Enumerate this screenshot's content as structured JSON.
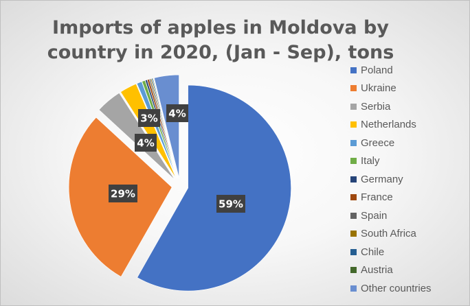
{
  "chart_data": {
    "type": "pie",
    "title": "Imports of apples in Moldova by country in 2020, (Jan - Sep), tons",
    "legend_position": "right",
    "exploded": true,
    "categories": [
      "Poland",
      "Ukraine",
      "Serbia",
      "Netherlands",
      "Greece",
      "Italy",
      "Germany",
      "France",
      "Spain",
      "South Africa",
      "Chile",
      "Austria",
      "Other countries"
    ],
    "values": [
      58.5,
      28.8,
      4.1,
      2.7,
      0.8,
      0.5,
      0.3,
      0.3,
      0.2,
      0.15,
      0.15,
      0.1,
      3.9
    ],
    "colors": [
      "#4472c4",
      "#ed7d31",
      "#a5a5a5",
      "#ffc000",
      "#5b9bd5",
      "#70ad47",
      "#264478",
      "#9e480e",
      "#636363",
      "#997300",
      "#255e91",
      "#43682b",
      "#698ed0"
    ],
    "data_labels": [
      "59%",
      "29%",
      "4%",
      "3%",
      "",
      "",
      "",
      "",
      "",
      "",
      "",
      "",
      "4%"
    ]
  }
}
